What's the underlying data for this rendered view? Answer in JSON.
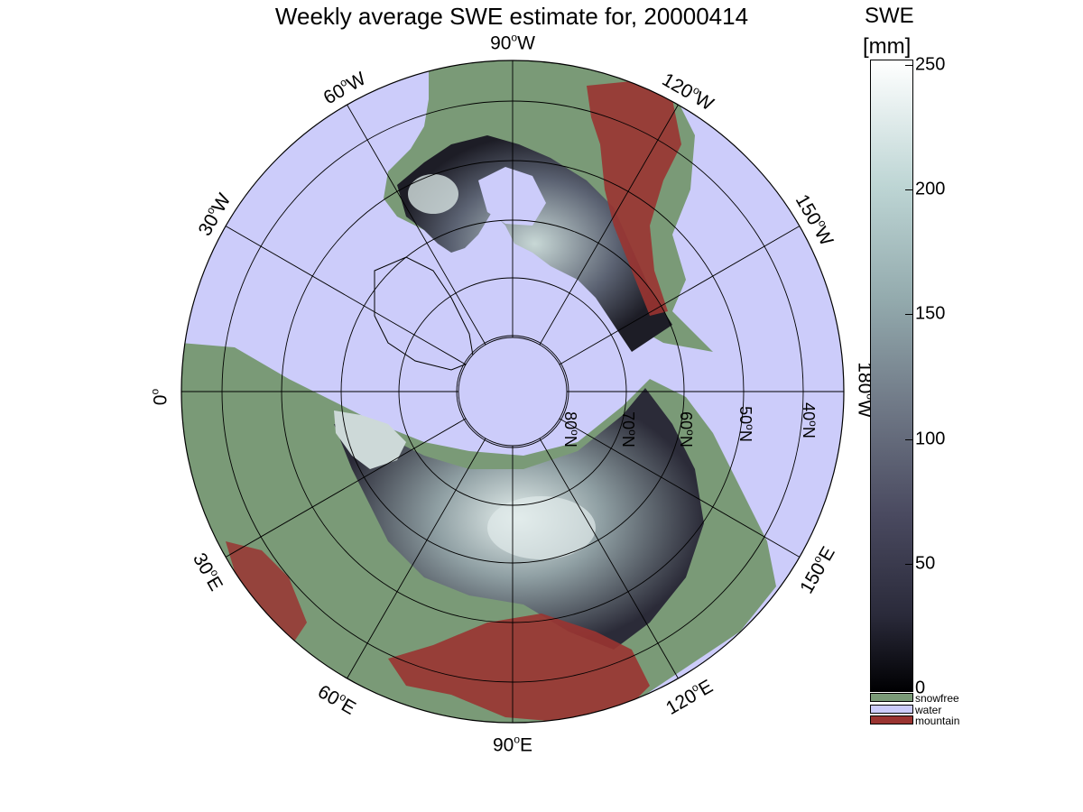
{
  "title": "Weekly average SWE estimate for, 20000414",
  "map": {
    "projection": "north polar stereographic",
    "colors": {
      "ocean": "#ccccfa",
      "snowfree": "#7a9a77",
      "mountain": "#9a3431",
      "graticule": "#000000"
    },
    "longitude_labels": [
      "90",
      "60",
      "30",
      "0",
      "120",
      "150",
      "180",
      "90",
      "30",
      "60",
      "120",
      "150"
    ],
    "longitude_suffixes": [
      "W",
      "W",
      "W",
      "",
      "W",
      "W",
      "W",
      "E",
      "E",
      "E",
      "E",
      "E"
    ],
    "latitude_labels": [
      "80",
      "70",
      "60",
      "50",
      "40"
    ],
    "latitude_suffix": "N",
    "degree_symbol": "o"
  },
  "colorbar": {
    "title": "SWE",
    "unit": "[mm]",
    "ticks": [
      "250",
      "200",
      "150",
      "100",
      "50",
      "0"
    ],
    "range": [
      0,
      250
    ]
  },
  "legend": {
    "items": [
      {
        "label": "snowfree",
        "color": "#7a9a77"
      },
      {
        "label": "water",
        "color": "#ccccfa"
      },
      {
        "label": "mountain",
        "color": "#9a3431"
      }
    ]
  }
}
